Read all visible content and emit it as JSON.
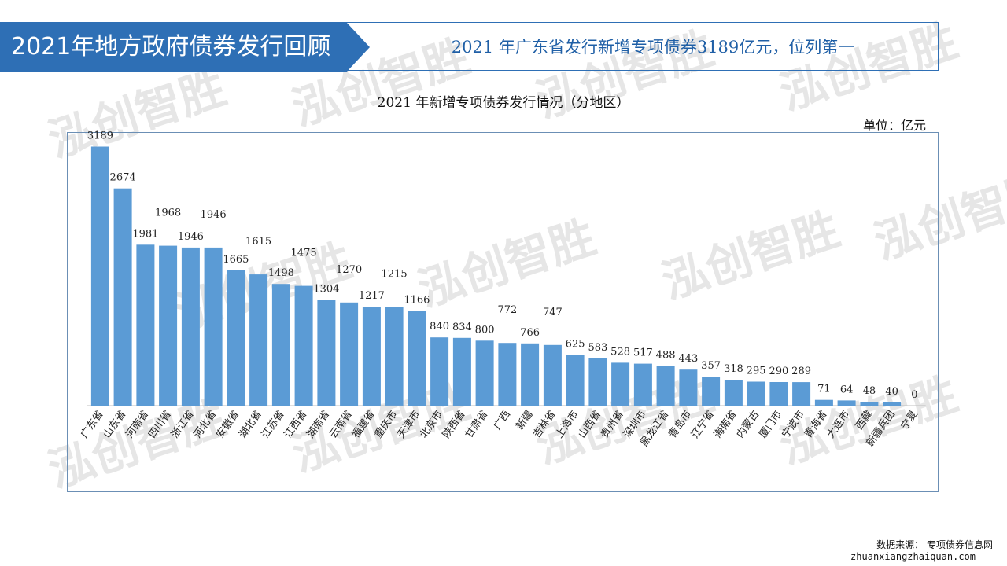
{
  "header": {
    "left_title": "2021年地方政府债券发行回顾",
    "right_title": "2021 年广东省发行新增专项债券3189亿元，位列第一"
  },
  "chart_data": {
    "type": "bar",
    "title": "2021 年新增专项债券发行情况（分地区）",
    "unit": "单位：亿元",
    "categories": [
      "广东省",
      "山东省",
      "河南省",
      "四川省",
      "浙江省",
      "河北省",
      "安徽省",
      "湖北省",
      "江苏省",
      "江西省",
      "湖南省",
      "云南省",
      "福建省",
      "重庆市",
      "天津市",
      "北京市",
      "陕西省",
      "甘肃省",
      "广西",
      "新疆",
      "吉林省",
      "上海市",
      "山西省",
      "贵州省",
      "深圳市",
      "黑龙江省",
      "青岛市",
      "辽宁省",
      "海南省",
      "内蒙古",
      "厦门市",
      "宁波市",
      "青海省",
      "大连市",
      "西藏",
      "新疆兵团",
      "宁夏"
    ],
    "values": [
      3189,
      2674,
      1981,
      1968,
      1946,
      1946,
      1665,
      1615,
      1498,
      1475,
      1304,
      1270,
      1217,
      1215,
      1166,
      840,
      834,
      800,
      772,
      766,
      747,
      625,
      583,
      528,
      517,
      488,
      443,
      357,
      318,
      295,
      290,
      289,
      71,
      64,
      48,
      40,
      0
    ],
    "value_labels": [
      "3189",
      "2674",
      "1981",
      "1968",
      "1946",
      "1946",
      "1665",
      "1615",
      "1498",
      "1475",
      "1304",
      "1270",
      "1217",
      "1215",
      "1166",
      "840",
      "834",
      "800",
      "772",
      "766",
      "747",
      "625",
      "583",
      "528",
      "517",
      "488",
      "443",
      "357",
      "318",
      "295",
      "290",
      "289",
      "71",
      "64",
      "48",
      "40",
      "0"
    ],
    "ylim": [
      0,
      3300
    ],
    "bar_color": "#5b9bd5",
    "grid": false,
    "legend": "none"
  },
  "source": {
    "label": "数据来源：  专项债券信息网",
    "url": "zhuanxiangzhaiquan.com"
  },
  "watermark": {
    "text": "泓创智胜"
  },
  "colors": {
    "header_blue": "#2e6fb5",
    "header_text": "#1f5fa6",
    "frame": "#6b8fb5"
  }
}
